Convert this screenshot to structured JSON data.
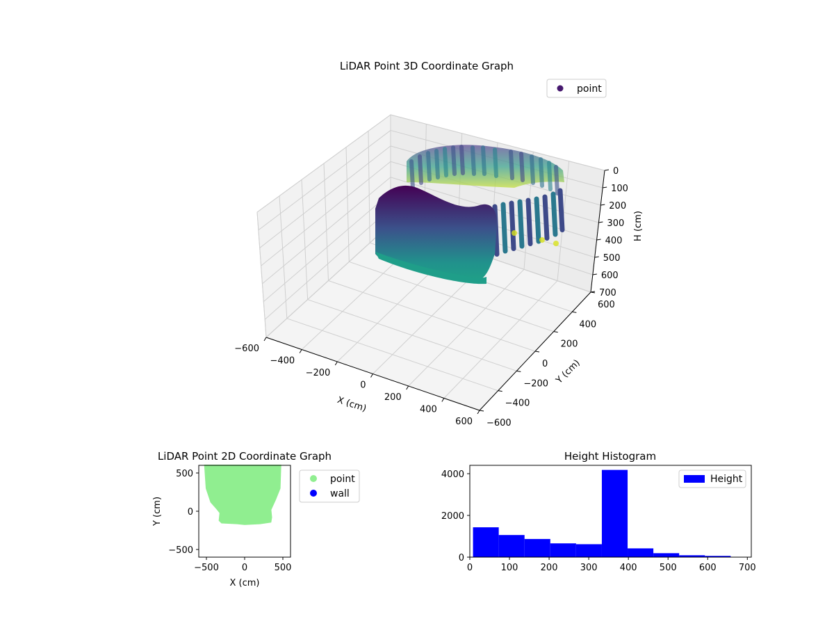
{
  "chart_data": [
    {
      "type": "scatter3d",
      "title": "LiDAR Point 3D Coordinate Graph",
      "xlabel": "X (cm)",
      "ylabel": "Y (cm)",
      "zlabel": "H (cm)",
      "xlim": [
        -600,
        600
      ],
      "ylim": [
        -600,
        600
      ],
      "zlim": [
        700,
        0
      ],
      "xticks": [
        "−600",
        "−400",
        "−200",
        "0",
        "200",
        "400",
        "600"
      ],
      "yticks": [
        "−600",
        "−400",
        "−200",
        "0",
        "200",
        "400",
        "600"
      ],
      "zticks": [
        "0",
        "100",
        "200",
        "300",
        "400",
        "500",
        "600",
        "700"
      ],
      "grid": true,
      "legend": {
        "placement": "top-right",
        "entries": [
          {
            "label": "point",
            "color": "#46186e"
          }
        ]
      },
      "colormap": "viridis",
      "series": [
        {
          "name": "point",
          "description_points": [
            {
              "x": -450,
              "y": -150,
              "h": 0
            },
            {
              "x": -200,
              "y": -160,
              "h": 0
            },
            {
              "x": 0,
              "y": -170,
              "h": 0
            },
            {
              "x": 200,
              "y": -160,
              "h": 0
            },
            {
              "x": 420,
              "y": -100,
              "h": 0
            },
            {
              "x": 460,
              "y": 200,
              "h": 0
            },
            {
              "x": 420,
              "y": 500,
              "h": 0
            },
            {
              "x": 0,
              "y": 600,
              "h": 0
            },
            {
              "x": -400,
              "y": 600,
              "h": 0
            },
            {
              "x": -460,
              "y": 200,
              "h": 0
            }
          ]
        }
      ]
    },
    {
      "type": "scatter",
      "title": "LiDAR Point 2D Coordinate Graph",
      "xlabel": "X (cm)",
      "ylabel": "Y (cm)",
      "xlim": [
        -600,
        600
      ],
      "ylim": [
        -600,
        600
      ],
      "xticks": [
        "−500",
        "0",
        "500"
      ],
      "yticks": [
        "−500",
        "0",
        "500"
      ],
      "legend": {
        "placement": "outside-right",
        "entries": [
          {
            "label": "point",
            "color": "#90ee90"
          },
          {
            "label": "wall",
            "color": "#0000ff"
          }
        ]
      },
      "series": [
        {
          "name": "point",
          "color": "#90ee90",
          "outline": [
            [
              -520,
              600
            ],
            [
              -500,
              300
            ],
            [
              -440,
              120
            ],
            [
              -360,
              30
            ],
            [
              -320,
              -20
            ],
            [
              -330,
              -120
            ],
            [
              -300,
              -150
            ],
            [
              -100,
              -160
            ],
            [
              0,
              -170
            ],
            [
              200,
              -160
            ],
            [
              340,
              -140
            ],
            [
              350,
              -80
            ],
            [
              340,
              20
            ],
            [
              400,
              150
            ],
            [
              460,
              300
            ],
            [
              470,
              600
            ]
          ]
        },
        {
          "name": "wall",
          "color": "#0000ff",
          "outline": []
        }
      ]
    },
    {
      "type": "bar",
      "title": "Height Histogram",
      "xlabel": "",
      "ylabel": "",
      "xlim": [
        0,
        710
      ],
      "ylim": [
        0,
        4400
      ],
      "xticks": [
        "0",
        "100",
        "200",
        "300",
        "400",
        "500",
        "600",
        "700"
      ],
      "yticks": [
        "0",
        "2000",
        "4000"
      ],
      "legend": {
        "placement": "top-right",
        "entries": [
          {
            "label": "Height",
            "color": "#0000ff"
          }
        ]
      },
      "bin_edges": [
        8,
        73,
        138,
        203,
        268,
        333,
        398,
        463,
        528,
        593,
        658
      ],
      "series": [
        {
          "name": "Height",
          "color": "#0000ff",
          "values": [
            1430,
            1060,
            870,
            660,
            620,
            4180,
            420,
            190,
            90,
            60
          ]
        }
      ]
    }
  ]
}
